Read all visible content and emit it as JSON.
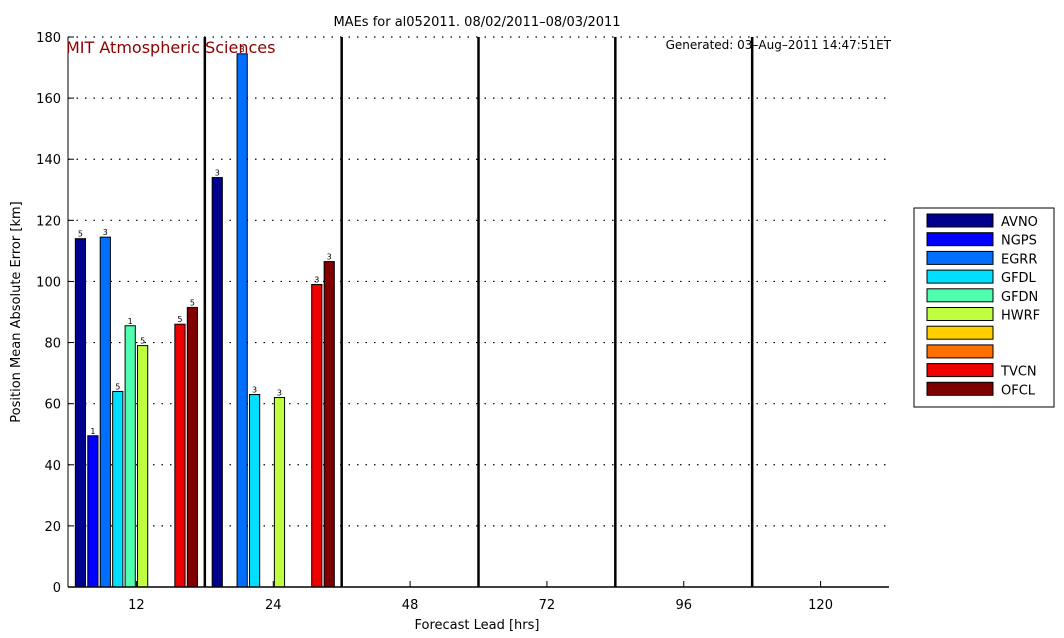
{
  "chart_data": {
    "type": "bar",
    "title": "MAEs for al052011. 08/02/2011–08/03/2011",
    "xlabel": "Forecast Lead [hrs]",
    "ylabel": "Position Mean Absolute Error [km]",
    "ylim": [
      0,
      180
    ],
    "yticks": [
      "0",
      "20",
      "40",
      "60",
      "80",
      "100",
      "120",
      "140",
      "160",
      "180"
    ],
    "categories": [
      "12",
      "24",
      "48",
      "72",
      "96",
      "120"
    ],
    "grid": "horizontal dotted",
    "legend_position": "right",
    "brand_text": "MIT Atmospheric Sciences",
    "generated_text": "Generated: 03–Aug–2011 14:47:51ET",
    "series": [
      {
        "name": "AVNO",
        "color": "#00008f",
        "values": [
          114,
          134,
          null,
          null,
          null,
          null
        ],
        "counts": [
          "5",
          "3",
          null,
          null,
          null,
          null
        ]
      },
      {
        "name": "NGPS",
        "color": "#0000ff",
        "values": [
          49.5,
          null,
          null,
          null,
          null,
          null
        ],
        "counts": [
          "1",
          null,
          null,
          null,
          null,
          null
        ]
      },
      {
        "name": "EGRR",
        "color": "#006fff",
        "values": [
          114.5,
          174.5,
          null,
          null,
          null,
          null
        ],
        "counts": [
          "3",
          "3",
          null,
          null,
          null,
          null
        ]
      },
      {
        "name": "GFDL",
        "color": "#00dfff",
        "values": [
          64,
          63,
          null,
          null,
          null,
          null
        ],
        "counts": [
          "5",
          "3",
          null,
          null,
          null,
          null
        ]
      },
      {
        "name": "GFDN",
        "color": "#4fffaf",
        "values": [
          85.5,
          null,
          null,
          null,
          null,
          null
        ],
        "counts": [
          "1",
          null,
          null,
          null,
          null,
          null
        ]
      },
      {
        "name": "HWRF",
        "color": "#bfff3f",
        "values": [
          79,
          62,
          null,
          null,
          null,
          null
        ],
        "counts": [
          "5",
          "3",
          null,
          null,
          null,
          null
        ]
      },
      {
        "name": "",
        "color": "#ffcf00",
        "values": [
          null,
          null,
          null,
          null,
          null,
          null
        ],
        "counts": [
          null,
          null,
          null,
          null,
          null,
          null
        ]
      },
      {
        "name": "",
        "color": "#ff6f00",
        "values": [
          null,
          null,
          null,
          null,
          null,
          null
        ],
        "counts": [
          null,
          null,
          null,
          null,
          null,
          null
        ]
      },
      {
        "name": "TVCN",
        "color": "#ef0000",
        "values": [
          86,
          99,
          null,
          null,
          null,
          null
        ],
        "counts": [
          "5",
          "3",
          null,
          null,
          null,
          null
        ]
      },
      {
        "name": "OFCL",
        "color": "#800000",
        "values": [
          91.5,
          106.5,
          null,
          null,
          null,
          null
        ],
        "counts": [
          "5",
          "3",
          null,
          null,
          null,
          null
        ]
      }
    ]
  }
}
